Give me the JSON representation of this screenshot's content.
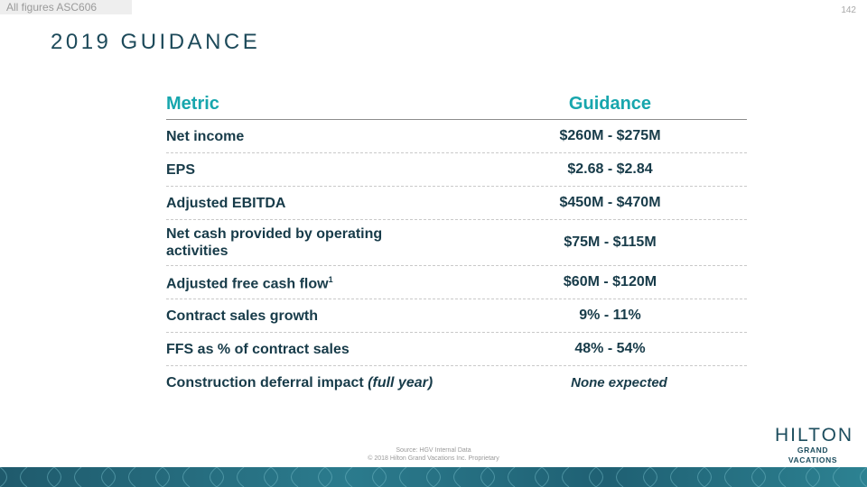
{
  "header": {
    "badge": "All figures ASC606",
    "page_number": "142",
    "title": "2019 GUIDANCE"
  },
  "table": {
    "columns": [
      "Metric",
      "Guidance"
    ],
    "rows": [
      {
        "metric": "Net income",
        "guidance": "$260M - $275M"
      },
      {
        "metric": "EPS",
        "guidance": "$2.68 - $2.84"
      },
      {
        "metric": "Adjusted EBITDA",
        "guidance": "$450M - $470M"
      },
      {
        "metric": "Net cash provided by operating activities",
        "guidance": "$75M - $115M"
      },
      {
        "metric": "Adjusted free cash flow",
        "metric_sup": "1",
        "guidance": "$60M - $120M"
      },
      {
        "metric": "Contract sales growth",
        "guidance": "9% - 11%"
      },
      {
        "metric": "FFS as % of contract sales",
        "guidance": "48% - 54%"
      },
      {
        "metric": "Construction deferral impact",
        "metric_italic": "(full year)",
        "guidance": "None expected"
      }
    ]
  },
  "logo": {
    "main": "HILTON",
    "sub": "GRAND VACATIONS"
  },
  "footer": {
    "source": "Source: HGV Internal Data",
    "copyright": "© 2018 Hilton Grand Vacations Inc. Proprietary"
  },
  "colors": {
    "accent": "#17a6ad",
    "text": "#173b49",
    "band": "#1f5a6c"
  }
}
